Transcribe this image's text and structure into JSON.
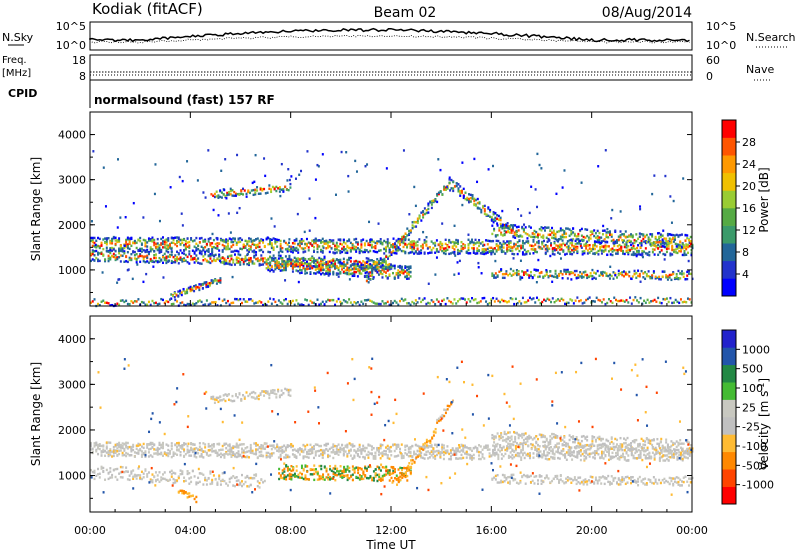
{
  "header": {
    "station": "Kodiak (fitACF)",
    "beam": "Beam 02",
    "date": "08/Aug/2014"
  },
  "sky_panel": {
    "left_label": "N.Sky",
    "right_label": "N.Search",
    "left_ticks": [
      "10^5",
      "10^0"
    ],
    "right_ticks": [
      "10^5",
      "10^0"
    ]
  },
  "freq_panel": {
    "left_label_line1": "Freq.",
    "left_label_line2": "[MHz]",
    "right_label": "Nave",
    "left_ticks": [
      "18",
      "8"
    ],
    "right_ticks": [
      "60",
      "0"
    ]
  },
  "cpid": {
    "label": "CPID",
    "text": "normalsound (fast) 157 RF"
  },
  "colors": {
    "power": [
      "#0000ff",
      "#2233cc",
      "#226699",
      "#3a9a6a",
      "#55aa44",
      "#99cc33",
      "#f0c000",
      "#ff9900",
      "#ff5500",
      "#ff0000"
    ],
    "velocity": [
      "#2222cc",
      "#2255aa",
      "#228844",
      "#44bb33",
      "#c8c8c0",
      "#c0c0c0",
      "#ffbb33",
      "#ff8800",
      "#ff4400",
      "#ff0000"
    ]
  },
  "chart_data": [
    {
      "type": "heatmap",
      "panel": "power",
      "xlabel": "Time UT",
      "ylabel": "Slant Range [km]",
      "x_ticks": [
        "00:00",
        "04:00",
        "08:00",
        "12:00",
        "16:00",
        "20:00",
        "00:00"
      ],
      "ylim": [
        200,
        4500
      ],
      "y_ticks": [
        1000,
        2000,
        3000,
        4000
      ],
      "colorbar": {
        "label": "Power [dB]",
        "ticks": [
          4,
          8,
          12,
          16,
          20,
          24,
          28
        ]
      }
    },
    {
      "type": "heatmap",
      "panel": "velocity",
      "xlabel": "Time UT",
      "ylabel": "Slant Range [km]",
      "x_ticks": [
        "00:00",
        "04:00",
        "08:00",
        "12:00",
        "16:00",
        "20:00",
        "00:00"
      ],
      "ylim": [
        200,
        4500
      ],
      "y_ticks": [
        1000,
        2000,
        3000,
        4000
      ],
      "colorbar": {
        "label": "Velocity",
        "unit_text": "[m s",
        "unit_exp": "-1",
        "unit_close": "]",
        "ticks": [
          "1000",
          "500",
          "100",
          "25",
          "-25",
          "-100",
          "-500",
          "-1000"
        ]
      }
    }
  ]
}
